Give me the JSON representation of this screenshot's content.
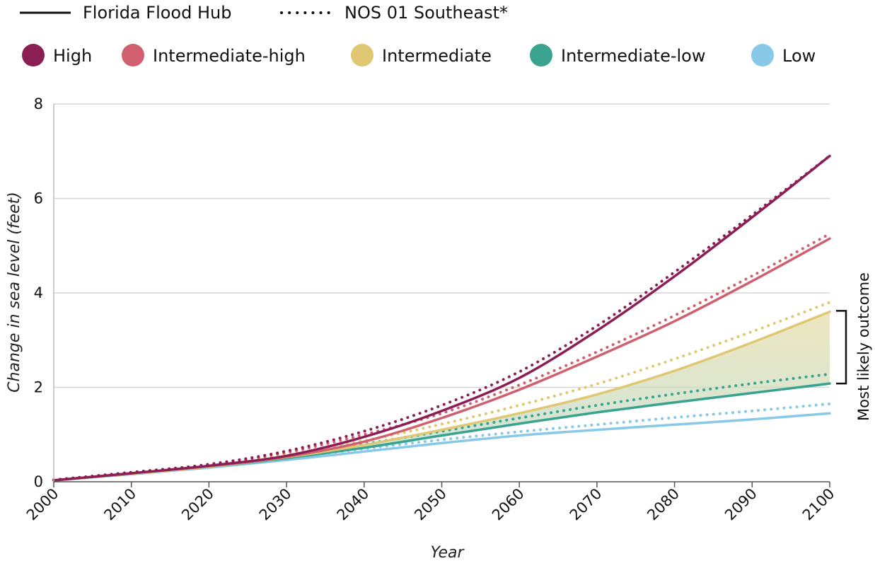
{
  "chart_data": {
    "type": "line",
    "title": "",
    "xlabel": "Year",
    "ylabel": "Change in sea level (feet)",
    "xlim": [
      2000,
      2100
    ],
    "ylim": [
      0,
      8
    ],
    "x_ticks": [
      "2000",
      "2010",
      "2020",
      "2030",
      "2040",
      "2050",
      "2060",
      "2070",
      "2080",
      "2090",
      "2100"
    ],
    "y_ticks": [
      "0",
      "2",
      "4",
      "6",
      "8"
    ],
    "grid": true,
    "legend_placement": "top",
    "source_legend": [
      {
        "name": "Florida Flood Hub",
        "style": "solid"
      },
      {
        "name": "NOS 01 Southeast*",
        "style": "dotted"
      }
    ],
    "x": [
      2000,
      2010,
      2020,
      2030,
      2040,
      2050,
      2060,
      2070,
      2080,
      2090,
      2100
    ],
    "series": [
      {
        "name": "High",
        "color": "#8b1f55",
        "source": "Florida Flood Hub",
        "values": [
          0.03,
          0.18,
          0.34,
          0.55,
          0.95,
          1.5,
          2.2,
          3.2,
          4.35,
          5.6,
          6.9
        ]
      },
      {
        "name": "High",
        "color": "#8b1f55",
        "source": "NOS 01 Southeast*",
        "values": [
          0.04,
          0.2,
          0.37,
          0.65,
          1.07,
          1.62,
          2.33,
          3.3,
          4.44,
          5.65,
          6.9
        ]
      },
      {
        "name": "Intermediate-high",
        "color": "#d0606f",
        "source": "Florida Flood Hub",
        "values": [
          0.03,
          0.18,
          0.33,
          0.53,
          0.85,
          1.35,
          1.95,
          2.65,
          3.4,
          4.25,
          5.15
        ]
      },
      {
        "name": "Intermediate-high",
        "color": "#d0606f",
        "source": "NOS 01 Southeast*",
        "values": [
          0.04,
          0.2,
          0.36,
          0.62,
          1.0,
          1.45,
          2.05,
          2.75,
          3.52,
          4.36,
          5.25
        ]
      },
      {
        "name": "Intermediate",
        "color": "#e0c873",
        "source": "Florida Flood Hub",
        "values": [
          0.03,
          0.17,
          0.32,
          0.52,
          0.78,
          1.1,
          1.45,
          1.85,
          2.35,
          2.95,
          3.6
        ]
      },
      {
        "name": "Intermediate",
        "color": "#e0c873",
        "source": "NOS 01 Southeast*",
        "values": [
          0.04,
          0.19,
          0.35,
          0.58,
          0.87,
          1.22,
          1.62,
          2.07,
          2.6,
          3.18,
          3.8
        ]
      },
      {
        "name": "Intermediate-low",
        "color": "#3aa390",
        "source": "Florida Flood Hub",
        "values": [
          0.03,
          0.17,
          0.32,
          0.5,
          0.72,
          0.98,
          1.23,
          1.47,
          1.68,
          1.88,
          2.08
        ]
      },
      {
        "name": "Intermediate-low",
        "color": "#3aa390",
        "source": "NOS 01 Southeast*",
        "values": [
          0.04,
          0.19,
          0.35,
          0.56,
          0.8,
          1.07,
          1.35,
          1.62,
          1.86,
          2.08,
          2.28
        ]
      },
      {
        "name": "Low",
        "color": "#88c9e8",
        "source": "Florida Flood Hub",
        "values": [
          0.03,
          0.16,
          0.3,
          0.46,
          0.64,
          0.82,
          0.98,
          1.1,
          1.21,
          1.32,
          1.45
        ]
      },
      {
        "name": "Low",
        "color": "#88c9e8",
        "source": "NOS 01 Southeast*",
        "values": [
          0.04,
          0.18,
          0.33,
          0.51,
          0.7,
          0.89,
          1.06,
          1.21,
          1.36,
          1.5,
          1.65
        ]
      }
    ],
    "scenario_legend": [
      {
        "name": "High",
        "color": "#8b1f55"
      },
      {
        "name": "Intermediate-high",
        "color": "#d0606f"
      },
      {
        "name": "Intermediate",
        "color": "#e0c873"
      },
      {
        "name": "Intermediate-low",
        "color": "#3aa390"
      },
      {
        "name": "Low",
        "color": "#88c9e8"
      }
    ],
    "shaded_band": {
      "between": [
        "Intermediate",
        "Intermediate-low"
      ],
      "source": "Florida Flood Hub",
      "colors": [
        "#e8deaa",
        "#b6dcd4"
      ]
    },
    "annotation": {
      "text": "Most likely outcome",
      "range": [
        2.08,
        3.62
      ]
    }
  }
}
